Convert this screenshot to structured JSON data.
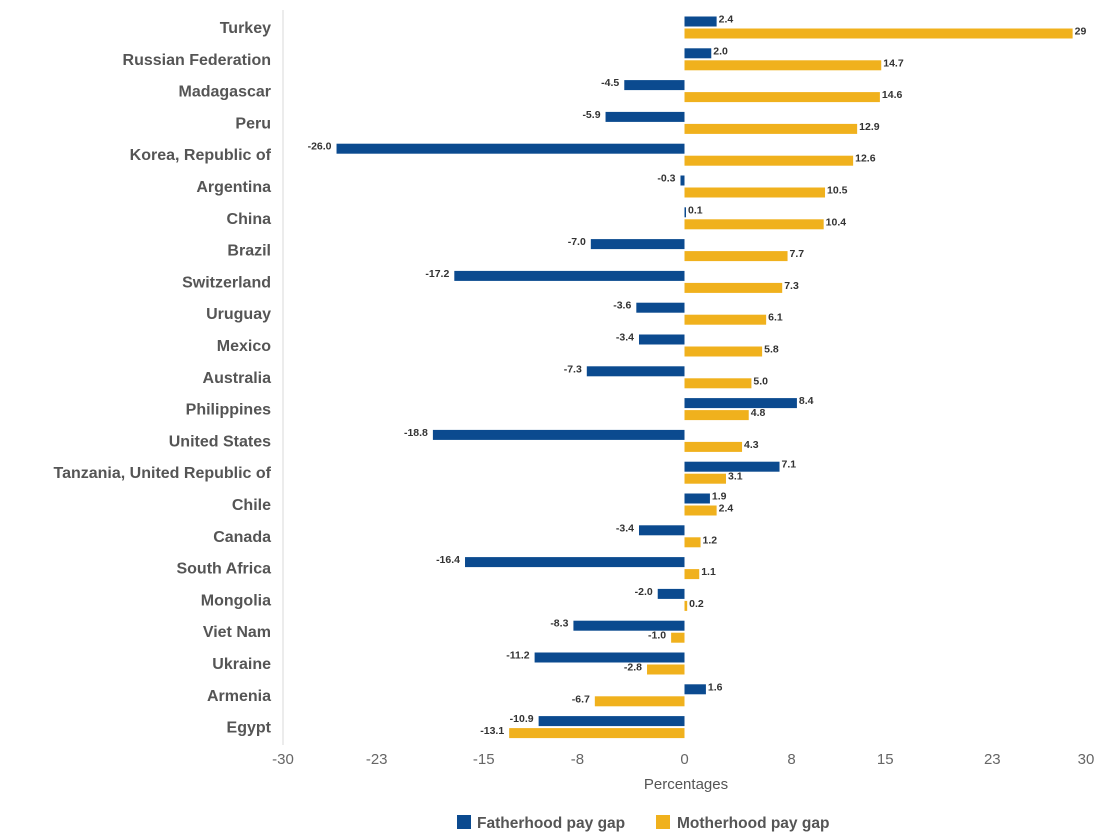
{
  "chart_data": {
    "type": "bar",
    "orientation": "horizontal",
    "categories": [
      "Turkey",
      "Russian Federation",
      "Madagascar",
      "Peru",
      "Korea, Republic of",
      "Argentina",
      "China",
      "Brazil",
      "Switzerland",
      "Uruguay",
      "Mexico",
      "Australia",
      "Philippines",
      "United States",
      "Tanzania, United Republic of",
      "Chile",
      "Canada",
      "South Africa",
      "Mongolia",
      "Viet Nam",
      "Ukraine",
      "Armenia",
      "Egypt"
    ],
    "series": [
      {
        "name": "Fatherhood pay gap",
        "color": "#0b4a8f",
        "values": [
          2.4,
          2.0,
          -4.5,
          -5.9,
          -26.0,
          -0.3,
          0.1,
          -7.0,
          -17.2,
          -3.6,
          -3.4,
          -7.3,
          8.4,
          -18.8,
          7.1,
          1.9,
          -3.4,
          -16.4,
          -2.0,
          -8.3,
          -11.2,
          1.6,
          -10.9
        ],
        "labels": [
          "2.4",
          "2.0",
          "-4.5",
          "-5.9",
          "-26.0",
          "-0.3",
          "0.1",
          "-7.0",
          "-17.2",
          "-3.6",
          "-3.4",
          "-7.3",
          "8.4",
          "-18.8",
          "7.1",
          "1.9",
          "-3.4",
          "-16.4",
          "-2.0",
          "-8.3",
          "-11.2",
          "1.6",
          "-10.9"
        ]
      },
      {
        "name": "Motherhood pay gap",
        "color": "#f0b11d",
        "values": [
          29,
          14.7,
          14.6,
          12.9,
          12.6,
          10.5,
          10.4,
          7.7,
          7.3,
          6.1,
          5.8,
          5.0,
          4.8,
          4.3,
          3.1,
          2.4,
          1.2,
          1.1,
          0.2,
          -1.0,
          -2.8,
          -6.7,
          -13.1
        ],
        "labels": [
          "29",
          "14.7",
          "14.6",
          "12.9",
          "12.6",
          "10.5",
          "10.4",
          "7.7",
          "7.3",
          "6.1",
          "5.8",
          "5.0",
          "4.8",
          "4.3",
          "3.1",
          "2.4",
          "1.2",
          "1.1",
          "0.2",
          "-1.0",
          "-2.8",
          "-6.7",
          "-13.1"
        ]
      }
    ],
    "xlabel": "Percentages",
    "xlim": [
      -30,
      30
    ],
    "xticks": [
      -30,
      -23,
      -15,
      -8,
      0,
      8,
      15,
      23,
      30
    ],
    "xtick_labels": [
      "-30",
      "-23",
      "-15",
      "-8",
      "0",
      "8",
      "15",
      "23",
      "30"
    ],
    "grid": false,
    "legend_position": "bottom-center"
  }
}
